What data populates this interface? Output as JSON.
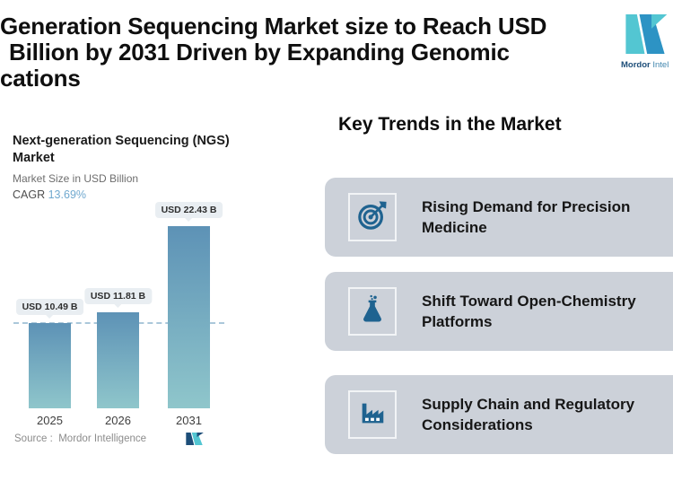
{
  "header": {
    "title_lines": [
      "Generation Sequencing Market size to Reach USD",
      "Billion by 2031 Driven by Expanding Genomic",
      "cations"
    ],
    "logo": {
      "text_bold": "Mordor",
      "text_rest": "Intel"
    }
  },
  "chart": {
    "title": "Next-generation Sequencing (NGS) Market",
    "subtitle": "Market Size in USD Billion",
    "cagr_label": "CAGR",
    "cagr_value": "13.69%",
    "source": "Source :  Mordor Intelligence"
  },
  "chart_data": {
    "type": "bar",
    "title": "Next-generation Sequencing (NGS) Market",
    "ylabel": "Market Size in USD Billion",
    "categories": [
      "2025",
      "2026",
      "2031"
    ],
    "values": [
      10.49,
      11.81,
      22.43
    ],
    "bar_labels": [
      "USD 10.49 B",
      "USD 11.81 B",
      "USD 22.43 B"
    ],
    "cagr": "13.69%",
    "ylim": [
      0,
      22.43
    ],
    "grid": false,
    "reference_line": {
      "value": 10.49,
      "style": "dashed"
    },
    "source": "Mordor Intelligence"
  },
  "trends": {
    "heading": "Key Trends in the Market",
    "items": [
      {
        "icon": "target-icon",
        "label": "Rising Demand for Precision Medicine"
      },
      {
        "icon": "flask-icon",
        "label": "Shift Toward Open-Chemistry Platforms"
      },
      {
        "icon": "factory-icon",
        "label": "Supply Chain and Regulatory Considerations"
      }
    ]
  },
  "colors": {
    "brand_teal": "#53c6d2",
    "brand_blue": "#2d93c4",
    "brand_navy": "#1d4e79",
    "icon_blue": "#1f6390",
    "card_bg": "#ccd1d9",
    "chip_bg": "#e9eef2",
    "bar_top": "#5d92b6",
    "bar_bottom": "#8fc6cb",
    "dashed": "#abc8da",
    "cagr_blue": "#70a9cf"
  }
}
